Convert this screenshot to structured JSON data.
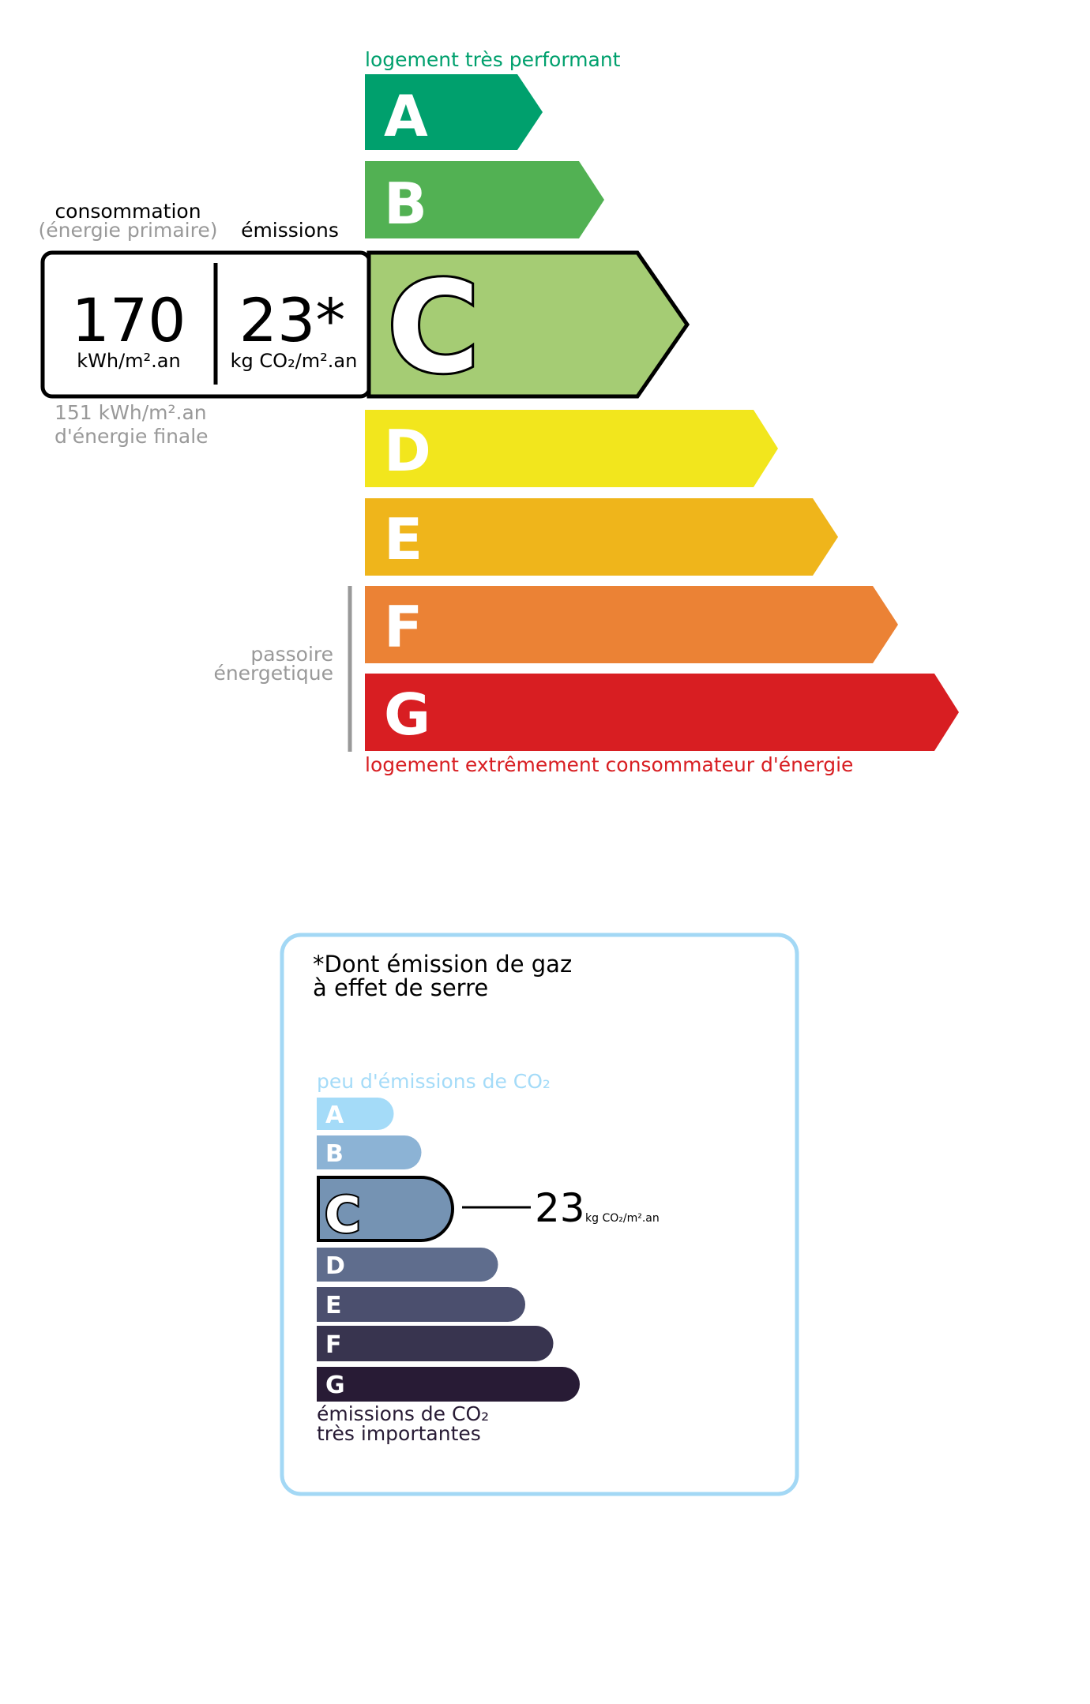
{
  "dpe": {
    "top_label": "logement très performant",
    "bottom_label": "logement extrêmement consommateur d'énergie",
    "consumption_header": "consommation",
    "consumption_subheader": "(énergie primaire)",
    "emissions_header": "émissions",
    "consumption_value": "170",
    "consumption_unit": "kWh/m².an",
    "emissions_value": "23*",
    "emissions_unit": "kg CO₂/m².an",
    "final_energy_value": "151 kWh/m².an",
    "final_energy_label": "d'énergie finale",
    "passoire_line1": "passoire",
    "passoire_line2": "énergetique",
    "current_class": "C",
    "classes": [
      {
        "letter": "A",
        "color": "#00a06d"
      },
      {
        "letter": "B",
        "color": "#52b153"
      },
      {
        "letter": "C",
        "color": "#a5cc74"
      },
      {
        "letter": "D",
        "color": "#f2e61d"
      },
      {
        "letter": "E",
        "color": "#efb51b"
      },
      {
        "letter": "F",
        "color": "#eb8235"
      },
      {
        "letter": "G",
        "color": "#d81e22"
      }
    ],
    "top_label_color": "#00a06d",
    "bottom_label_color": "#d81e22"
  },
  "ges": {
    "title_line1": "*Dont émission de gaz",
    "title_line2": "à effet de serre",
    "top_label": "peu d'émissions de CO₂",
    "bottom_label_line1": "émissions de CO₂",
    "bottom_label_line2": "très importantes",
    "value": "23",
    "unit": "kg CO₂/m².an",
    "current_class": "C",
    "border_color": "#a3d8f5",
    "classes": [
      {
        "letter": "A",
        "color": "#a4dbf8"
      },
      {
        "letter": "B",
        "color": "#8cb3d5"
      },
      {
        "letter": "C",
        "color": "#7593b3"
      },
      {
        "letter": "D",
        "color": "#5f6d8d"
      },
      {
        "letter": "E",
        "color": "#4b4f6e"
      },
      {
        "letter": "F",
        "color": "#38344f"
      },
      {
        "letter": "G",
        "color": "#281b35"
      }
    ]
  }
}
